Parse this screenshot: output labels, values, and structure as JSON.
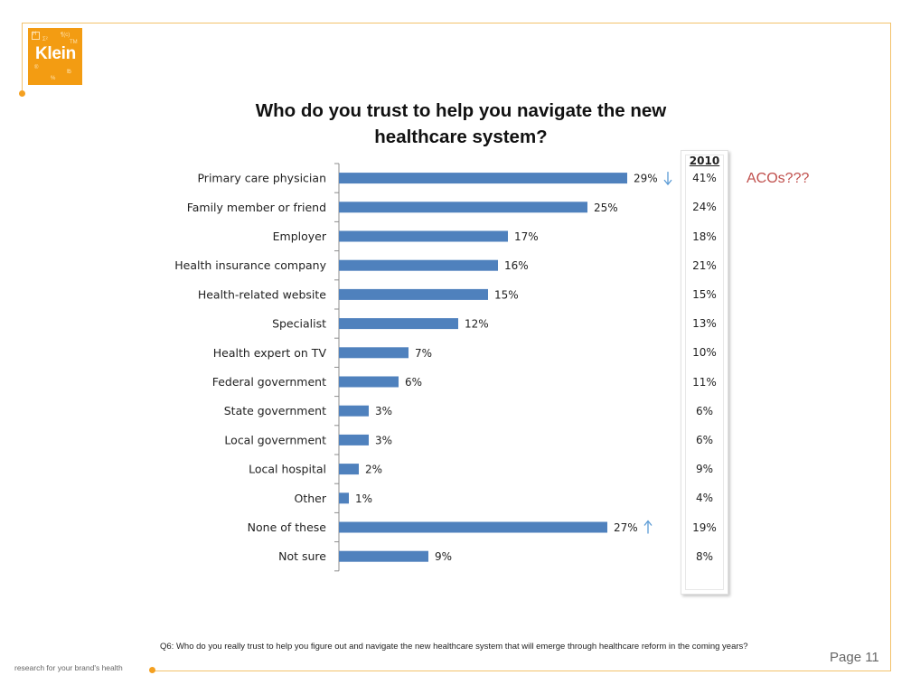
{
  "logo": {
    "word": "Klein",
    "mini": [
      "H",
      "Σ²",
      "¶(c)",
      "TM",
      "®",
      "%",
      "℔"
    ]
  },
  "page": {
    "acos_note": "ACOs???",
    "footnote": "Q6: Who do you really trust to help you figure out and navigate the new healthcare system that will emerge through healthcare reform in the coming years?",
    "tagline": "research for your brand's health",
    "page_label": "Page 11"
  },
  "colors": {
    "bar": "#4f81bd",
    "accent": "#f39c12",
    "frame": "#f3c26b",
    "note": "#c0504d",
    "arrow": "#5b9bd5"
  },
  "chart_data": {
    "type": "bar",
    "orientation": "horizontal",
    "title": "Who do you trust to help you navigate the new healthcare system?",
    "xlim": [
      0,
      30
    ],
    "grid": false,
    "categories": [
      "Primary care physician",
      "Family member or friend",
      "Employer",
      "Health insurance company",
      "Health-related website",
      "Specialist",
      "Health expert on TV",
      "Federal government",
      "State government",
      "Local government",
      "Local hospital",
      "Other",
      "None of these",
      "Not sure"
    ],
    "values": [
      29,
      25,
      17,
      16,
      15,
      12,
      7,
      6,
      3,
      3,
      2,
      1,
      27,
      9
    ],
    "value_labels": [
      "29%",
      "25%",
      "17%",
      "16%",
      "15%",
      "12%",
      "7%",
      "6%",
      "3%",
      "3%",
      "2%",
      "1%",
      "27%",
      "9%"
    ],
    "trend_arrows": [
      {
        "category": "Primary care physician",
        "direction": "down"
      },
      {
        "category": "None of these",
        "direction": "up"
      }
    ],
    "comparison": {
      "label": "2010",
      "values": [
        "41%",
        "24%",
        "18%",
        "21%",
        "15%",
        "13%",
        "10%",
        "11%",
        "6%",
        "6%",
        "9%",
        "4%",
        "19%",
        "8%"
      ]
    }
  }
}
